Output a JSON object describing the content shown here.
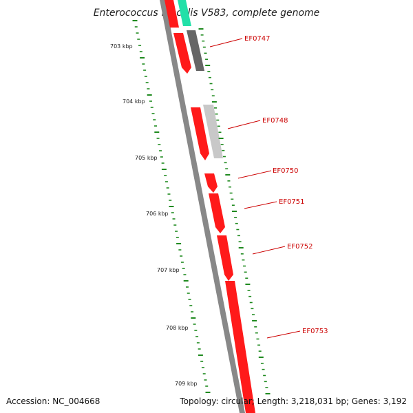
{
  "title": "Enterococcus faecalis V583, complete genome",
  "accession": "Accession: NC_004668",
  "summary": "Topology: circular; Length: 3,218,031 bp; Genes: 3,192",
  "colors": {
    "backbone": "#888888",
    "gene": "#ff1a1a",
    "gene_dark": "#b80000",
    "rna": "#22e0a8",
    "gc_dark": "#666666",
    "gc_light": "#c8c8c8",
    "ticks": "#1f8a1f",
    "label": "#cc0000"
  },
  "kbp_labels": [
    "703 kbp",
    "704 kbp",
    "705 kbp",
    "706 kbp",
    "707 kbp",
    "708 kbp",
    "709 kbp"
  ],
  "gene_labels": [
    "EF0747",
    "EF0748",
    "EF0750",
    "EF0751",
    "EF0752",
    "EF0753"
  ]
}
